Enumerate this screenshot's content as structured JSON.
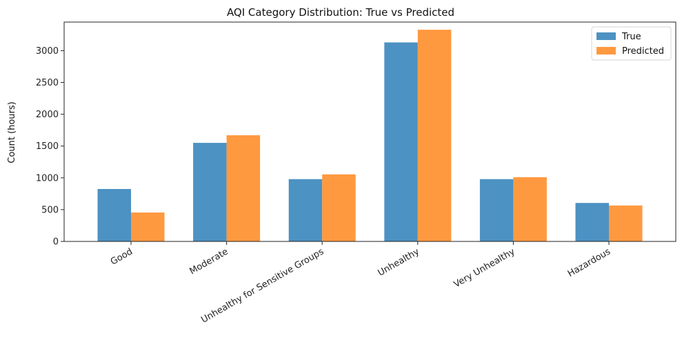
{
  "chart_data": {
    "type": "bar",
    "title": "AQI Category Distribution: True vs Predicted",
    "xlabel": "",
    "ylabel": "Count (hours)",
    "categories": [
      "Good",
      "Moderate",
      "Unhealthy for Sensitive Groups",
      "Unhealthy",
      "Very Unhealthy",
      "Hazardous"
    ],
    "series": [
      {
        "name": "True",
        "color": "#4c92c3",
        "values": [
          825,
          1550,
          980,
          3130,
          980,
          605
        ]
      },
      {
        "name": "Predicted",
        "color": "#ff9940",
        "values": [
          455,
          1670,
          1055,
          3330,
          1010,
          565
        ]
      }
    ],
    "ylim": [
      0,
      3450
    ],
    "yticks": [
      0,
      500,
      1000,
      1500,
      2000,
      2500,
      3000
    ],
    "legend": "top-right",
    "grid": false
  }
}
